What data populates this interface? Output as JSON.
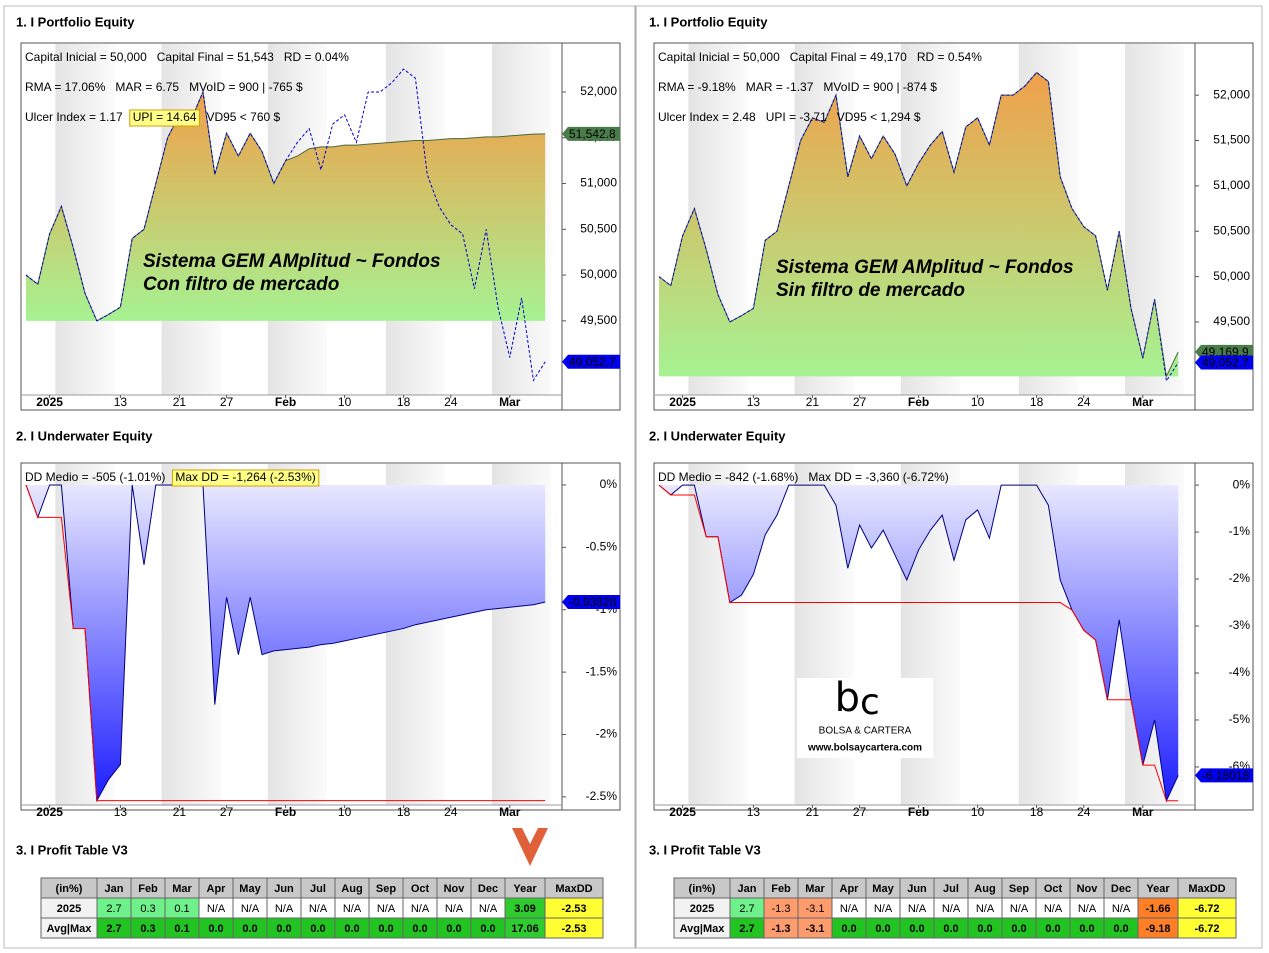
{
  "panels": [
    {
      "equity_title": "1. I Portfolio Equity",
      "underwater_title": "2. I Underwater Equity",
      "table_title": "3. I Profit Table V3",
      "table": {
        "header": [
          "(in%)",
          "Jan",
          "Feb",
          "Mar",
          "Apr",
          "May",
          "Jun",
          "Jul",
          "Aug",
          "Sep",
          "Oct",
          "Nov",
          "Dec",
          "Year",
          "MaxDD"
        ],
        "rows": [
          [
            "2025",
            "2.7",
            "0.3",
            "0.1",
            "N/A",
            "N/A",
            "N/A",
            "N/A",
            "N/A",
            "N/A",
            "N/A",
            "N/A",
            "N/A",
            "3.09",
            "-2.53"
          ],
          [
            "Avg|Max",
            "2.7",
            "0.3",
            "0.1",
            "0.0",
            "0.0",
            "0.0",
            "0.0",
            "0.0",
            "0.0",
            "0.0",
            "0.0",
            "0.0",
            "17.06",
            "-2.53"
          ]
        ]
      }
    },
    {
      "equity_title": "1. I Portfolio Equity",
      "underwater_title": "2. I Underwater Equity",
      "table_title": "3. I Profit Table V3",
      "table": {
        "header": [
          "(in%)",
          "Jan",
          "Feb",
          "Mar",
          "Apr",
          "May",
          "Jun",
          "Jul",
          "Aug",
          "Sep",
          "Oct",
          "Nov",
          "Dec",
          "Year",
          "MaxDD"
        ],
        "rows": [
          [
            "2025",
            "2.7",
            "-1.3",
            "-3.1",
            "N/A",
            "N/A",
            "N/A",
            "N/A",
            "N/A",
            "N/A",
            "N/A",
            "N/A",
            "N/A",
            "-1.66",
            "-6.72"
          ],
          [
            "Avg|Max",
            "2.7",
            "-1.3",
            "-3.1",
            "0.0",
            "0.0",
            "0.0",
            "0.0",
            "0.0",
            "0.0",
            "0.0",
            "0.0",
            "0.0",
            "-9.18",
            "-6.72"
          ]
        ]
      }
    }
  ],
  "logo": {
    "mark_b": "b",
    "mark_c": "c",
    "brand": "BOLSA & CARTERA",
    "url": "www.bolsaycartera.com"
  },
  "chart_data": [
    {
      "type": "area",
      "categories": [
        null,
        null,
        "2025",
        null,
        null,
        null,
        null,
        null,
        "13",
        null,
        null,
        null,
        null,
        "21",
        null,
        null,
        null,
        "27",
        null,
        null,
        null,
        null,
        "Feb",
        null,
        null,
        null,
        null,
        "10",
        null,
        null,
        null,
        null,
        "18",
        null,
        null,
        null,
        "24",
        null,
        null,
        null,
        null,
        "Mar",
        null,
        null,
        null
      ],
      "ylim": [
        48690,
        52535
      ],
      "yticks": [
        {
          "value": 49500,
          "label": "49,500"
        },
        {
          "value": 50000,
          "label": "50,000"
        },
        {
          "value": 50500,
          "label": "50,500"
        },
        {
          "value": 51000,
          "label": "51,000"
        },
        {
          "value": 51500,
          "label": "51,500"
        },
        {
          "value": 52000,
          "label": "52,000"
        }
      ],
      "stats": [
        [
          "Capital Inicial = 50,000",
          "Capital Final = 51,543",
          "RD = 0.04%"
        ],
        [
          "RMA = 17.06%",
          "MAR = 6.75",
          "MVoID = 900 | -765 $"
        ],
        [
          "Ulcer Index = 1.17",
          {
            "text": "UPI = 14.64",
            "highlight": true
          },
          "VD95 < 760 $"
        ]
      ],
      "watermark": [
        "Sistema GEM AMplitud ~ Fondos",
        "Con filtro de mercado"
      ],
      "series": [
        {
          "color": "#4a6a3a",
          "fill": "min",
          "fill_colors": [
            "#f0a04a",
            "#a6f292"
          ],
          "label_bg": "#4a7c4a",
          "label_color": "#000000",
          "end_label": "51,542.8",
          "values": [
            50000,
            49900,
            50450,
            50750,
            50300,
            49800,
            49500,
            49570,
            49650,
            50400,
            50500,
            51000,
            51500,
            51750,
            51700,
            52000,
            51100,
            51550,
            51300,
            51550,
            51350,
            51000,
            51250,
            51300,
            51380,
            51400,
            51400,
            51420,
            51420,
            51430,
            51440,
            51450,
            51460,
            51470,
            51470,
            51480,
            51490,
            51490,
            51500,
            51510,
            51510,
            51520,
            51530,
            51540,
            51542.8
          ]
        },
        {
          "color": "#0000cc",
          "dashed": true,
          "label_bg": "#0000ee",
          "label_color": "#ffffff",
          "end_label": "49,052.7",
          "values": [
            50000,
            49900,
            50450,
            50750,
            50300,
            49800,
            49500,
            49570,
            49650,
            50400,
            50500,
            51000,
            51500,
            51750,
            51700,
            52000,
            51100,
            51550,
            51300,
            51550,
            51350,
            51000,
            51250,
            51450,
            51600,
            51150,
            51650,
            51750,
            51450,
            52000,
            52000,
            52100,
            52250,
            52150,
            51100,
            50750,
            50550,
            50450,
            49850,
            50500,
            49650,
            49100,
            49750,
            48850,
            49052.7
          ]
        }
      ]
    },
    {
      "type": "area",
      "categories": [
        null,
        null,
        "2025",
        null,
        null,
        null,
        null,
        null,
        "13",
        null,
        null,
        null,
        null,
        "21",
        null,
        null,
        null,
        "27",
        null,
        null,
        null,
        null,
        "Feb",
        null,
        null,
        null,
        null,
        "10",
        null,
        null,
        null,
        null,
        "18",
        null,
        null,
        null,
        "24",
        null,
        null,
        null,
        null,
        "Mar",
        null,
        null,
        null
      ],
      "ylim": [
        48695,
        52575
      ],
      "yticks": [
        {
          "value": 49500,
          "label": "49,500"
        },
        {
          "value": 50000,
          "label": "50,000"
        },
        {
          "value": 50500,
          "label": "50,500"
        },
        {
          "value": 51000,
          "label": "51,000"
        },
        {
          "value": 51500,
          "label": "51,500"
        },
        {
          "value": 52000,
          "label": "52,000"
        }
      ],
      "stats": [
        [
          "Capital Inicial = 50,000",
          "Capital Final = 49,170",
          "RD = 0.54%"
        ],
        [
          "RMA = -9.18%",
          "MAR = -1.37",
          "MVoID = 900 | -874 $"
        ],
        [
          "Ulcer Index = 2.48",
          "UPI = -3.71",
          "VD95 < 1,294 $"
        ]
      ],
      "watermark": [
        "Sistema GEM AMplitud ~ Fondos",
        "Sin filtro de mercado"
      ],
      "series": [
        {
          "color": "#4a6a3a",
          "fill": "min",
          "fill_colors": [
            "#f0a04a",
            "#a6f292"
          ],
          "label_bg": "#4a7c4a",
          "label_color": "#000000",
          "end_label": "49,169.9",
          "values": [
            50000,
            49900,
            50450,
            50750,
            50300,
            49800,
            49500,
            49570,
            49650,
            50400,
            50500,
            51000,
            51500,
            51750,
            51700,
            52000,
            51100,
            51550,
            51300,
            51550,
            51350,
            51000,
            51250,
            51450,
            51600,
            51150,
            51650,
            51750,
            51450,
            52000,
            52000,
            52100,
            52250,
            52150,
            51100,
            50750,
            50550,
            50450,
            49850,
            50500,
            49650,
            49100,
            49750,
            48900,
            49169.9
          ]
        },
        {
          "color": "#0000cc",
          "dashed": true,
          "label_bg": "#0000ee",
          "label_color": "#ffffff",
          "end_label": "49,052.7",
          "values": [
            50000,
            49900,
            50450,
            50750,
            50300,
            49800,
            49500,
            49570,
            49650,
            50400,
            50500,
            51000,
            51500,
            51750,
            51700,
            52000,
            51100,
            51550,
            51300,
            51550,
            51350,
            51000,
            51250,
            51450,
            51600,
            51150,
            51650,
            51750,
            51450,
            52000,
            52000,
            52100,
            52250,
            52150,
            51100,
            50750,
            50550,
            50450,
            49850,
            50500,
            49650,
            49100,
            49750,
            48850,
            49052.7
          ]
        }
      ]
    },
    {
      "type": "area",
      "categories": [
        null,
        null,
        "2025",
        null,
        null,
        null,
        null,
        null,
        "13",
        null,
        null,
        null,
        null,
        "21",
        null,
        null,
        null,
        "27",
        null,
        null,
        null,
        null,
        "Feb",
        null,
        null,
        null,
        null,
        "10",
        null,
        null,
        null,
        null,
        "18",
        null,
        null,
        null,
        "24",
        null,
        null,
        null,
        null,
        "Mar",
        null,
        null,
        null
      ],
      "ylim": [
        -2.565,
        0.176
      ],
      "yticks": [
        {
          "value": 0,
          "label": "0%"
        },
        {
          "value": -0.5,
          "label": "-0.5%"
        },
        {
          "value": -1,
          "label": "-1%"
        },
        {
          "value": -1.5,
          "label": "-1.5%"
        },
        {
          "value": -2,
          "label": "-2%"
        },
        {
          "value": -2.5,
          "label": "-2.5%"
        }
      ],
      "stats": [
        [
          "DD Medio = -505 (-1.01%)",
          {
            "text": "Max DD = -1,264 (-2.53%)",
            "highlight": true
          }
        ]
      ],
      "series": [
        {
          "color": "#000080",
          "fill": "zero",
          "fill_colors": [
            "#f6f6ff",
            "#1a1aff"
          ],
          "label_bg": "#0000ee",
          "label_color": "#ffffff",
          "end_label": "-0.93828",
          "values": [
            0,
            -0.26,
            0,
            0,
            -1.15,
            -1.15,
            -2.53,
            -2.36,
            -2.24,
            0,
            -0.64,
            0,
            0,
            0,
            0,
            0,
            -1.76,
            -0.9,
            -1.36,
            -0.9,
            -1.36,
            -1.33,
            -1.32,
            -1.31,
            -1.3,
            -1.28,
            -1.27,
            -1.25,
            -1.23,
            -1.21,
            -1.19,
            -1.17,
            -1.15,
            -1.12,
            -1.1,
            -1.08,
            -1.06,
            -1.04,
            -1.02,
            -1.0,
            -0.99,
            -0.98,
            -0.97,
            -0.96,
            -0.93828
          ]
        },
        {
          "color": "#ff0000",
          "values": [
            0,
            -0.26,
            -0.26,
            -0.26,
            -1.15,
            -1.15,
            -2.53,
            -2.53,
            -2.53,
            -2.53,
            -2.53,
            -2.53,
            -2.53,
            -2.53,
            -2.53,
            -2.53,
            -2.53,
            -2.53,
            -2.53,
            -2.53,
            -2.53,
            -2.53,
            -2.53,
            -2.53,
            -2.53,
            -2.53,
            -2.53,
            -2.53,
            -2.53,
            -2.53,
            -2.53,
            -2.53,
            -2.53,
            -2.53,
            -2.53,
            -2.53,
            -2.53,
            -2.53,
            -2.53,
            -2.53,
            -2.53,
            -2.53,
            -2.53,
            -2.53,
            -2.53
          ]
        }
      ]
    },
    {
      "type": "area",
      "categories": [
        null,
        null,
        "2025",
        null,
        null,
        null,
        null,
        null,
        "13",
        null,
        null,
        null,
        null,
        "21",
        null,
        null,
        null,
        "27",
        null,
        null,
        null,
        null,
        "Feb",
        null,
        null,
        null,
        null,
        "10",
        null,
        null,
        null,
        null,
        "18",
        null,
        null,
        null,
        "24",
        null,
        null,
        null,
        null,
        "Mar",
        null,
        null,
        null
      ],
      "ylim": [
        -6.81,
        0.47
      ],
      "yticks": [
        {
          "value": 0,
          "label": "0%"
        },
        {
          "value": -1,
          "label": "-1%"
        },
        {
          "value": -2,
          "label": "-2%"
        },
        {
          "value": -3,
          "label": "-3%"
        },
        {
          "value": -4,
          "label": "-4%"
        },
        {
          "value": -5,
          "label": "-5%"
        },
        {
          "value": -6,
          "label": "-6%"
        }
      ],
      "stats": [
        [
          "DD Medio = -842 (-1.68%)",
          "Max DD = -3,360 (-6.72%)"
        ]
      ],
      "series": [
        {
          "color": "#000080",
          "fill": "zero",
          "fill_colors": [
            "#f6f6ff",
            "#1a1aff"
          ],
          "label_bg": "#0000ee",
          "label_color": "#ffffff",
          "end_label": "-6.18018",
          "values": [
            0,
            -0.21,
            0,
            0,
            -1.1,
            -1.1,
            -2.5,
            -2.34,
            -1.9,
            -1.06,
            -0.64,
            0,
            0,
            0,
            0,
            -0.43,
            -1.77,
            -0.85,
            -1.34,
            -0.96,
            -1.49,
            -2.02,
            -1.38,
            -0.96,
            -0.64,
            -1.6,
            -0.74,
            -0.53,
            -1.13,
            0,
            0,
            0,
            0,
            -0.43,
            -2.02,
            -2.66,
            -3.09,
            -3.3,
            -4.57,
            -2.87,
            -4.57,
            -5.96,
            -5.0,
            -6.72,
            -6.18018
          ]
        },
        {
          "color": "#ff0000",
          "values": [
            0,
            -0.21,
            -0.21,
            -0.21,
            -1.1,
            -1.1,
            -2.5,
            -2.5,
            -2.5,
            -2.5,
            -2.5,
            -2.5,
            -2.5,
            -2.5,
            -2.5,
            -2.5,
            -2.5,
            -2.5,
            -2.5,
            -2.5,
            -2.5,
            -2.5,
            -2.5,
            -2.5,
            -2.5,
            -2.5,
            -2.5,
            -2.5,
            -2.5,
            -2.5,
            -2.5,
            -2.5,
            -2.5,
            -2.5,
            -2.5,
            -2.66,
            -3.09,
            -3.3,
            -4.57,
            -4.57,
            -4.57,
            -5.96,
            -5.96,
            -6.72,
            -6.72
          ]
        }
      ]
    }
  ]
}
